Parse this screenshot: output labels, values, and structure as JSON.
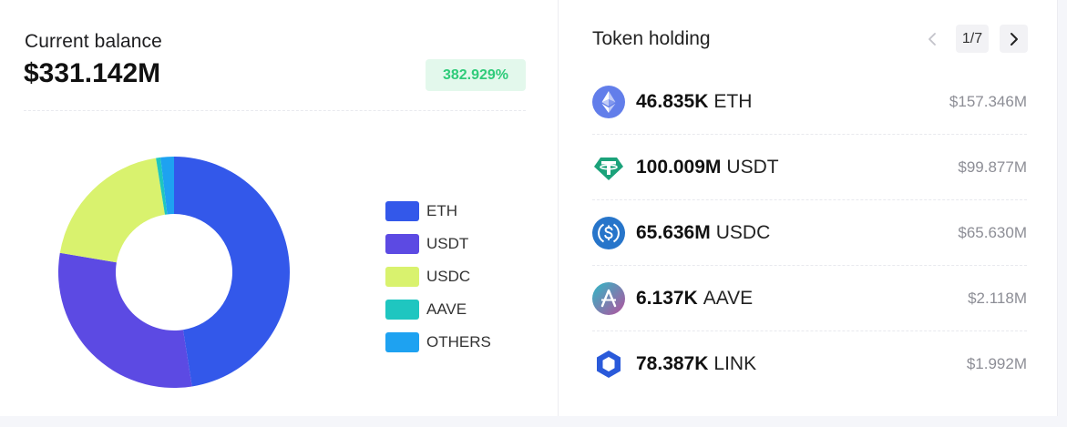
{
  "balance": {
    "label": "Current balance",
    "value": "$331.142M",
    "change": "382.929%",
    "change_color": "#2fcb7a"
  },
  "chart_data": {
    "type": "pie",
    "categories": [
      "ETH",
      "USDT",
      "USDC",
      "AAVE",
      "OTHERS"
    ],
    "values": [
      157.346,
      99.877,
      65.63,
      2.118,
      6.171
    ],
    "colors": [
      "#3358ea",
      "#5c4ae3",
      "#d9f26e",
      "#1fc6c0",
      "#1ea2f1"
    ],
    "donut": true,
    "legend_position": "right"
  },
  "holdings": {
    "title": "Token holding",
    "pager": {
      "prev_icon": "chevron-left-icon",
      "label": "1/7",
      "next_icon": "chevron-right-icon"
    },
    "items": [
      {
        "amount": "46.835K",
        "symbol": "ETH",
        "value": "$157.346M",
        "icon": "eth-icon"
      },
      {
        "amount": "100.009M",
        "symbol": "USDT",
        "value": "$99.877M",
        "icon": "usdt-icon"
      },
      {
        "amount": "65.636M",
        "symbol": "USDC",
        "value": "$65.630M",
        "icon": "usdc-icon"
      },
      {
        "amount": "6.137K",
        "symbol": "AAVE",
        "value": "$2.118M",
        "icon": "aave-icon"
      },
      {
        "amount": "78.387K",
        "symbol": "LINK",
        "value": "$1.992M",
        "icon": "link-icon"
      }
    ]
  }
}
